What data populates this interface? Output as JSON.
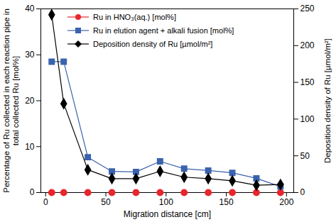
{
  "chart_data": {
    "type": "line",
    "x_label": "Migration distance [cm]",
    "y_label": "Percentage of Ru collected in each reaction pipe in total collected Ru [mol%]",
    "y2_label": "Deposition density of Ru [µmol/m²]",
    "x": [
      5,
      15,
      35,
      55,
      75,
      95,
      115,
      135,
      155,
      175,
      195
    ],
    "xlim": [
      -4,
      206
    ],
    "xticks": [
      0,
      50,
      100,
      150,
      200
    ],
    "ylim": [
      0,
      40
    ],
    "yticks": [
      0,
      10,
      20,
      30,
      40
    ],
    "y2lim": [
      0,
      250
    ],
    "y2ticks": [
      0,
      50,
      100,
      150,
      200,
      250
    ],
    "grid": false,
    "legend": "top",
    "series": [
      {
        "name": "Ru in HNO₃(aq.) [mol%]",
        "color": "#e8262c",
        "marker": "circle",
        "axis": "y",
        "values": [
          0,
          0,
          0,
          0,
          0,
          0,
          0,
          0,
          0,
          0,
          0
        ]
      },
      {
        "name": "Ru in elution agent + alkali fusion [mol%]",
        "color": "#3a62ad",
        "marker": "square",
        "axis": "y",
        "values": [
          28.5,
          28.5,
          7.7,
          4.6,
          4.5,
          6.8,
          5.2,
          4.8,
          4.3,
          3.1,
          1.3
        ]
      },
      {
        "name": "Deposition density of Ru [µmol/m²]",
        "color": "#000000",
        "marker": "diamond",
        "axis": "y2",
        "values": [
          242,
          121,
          31,
          19,
          19,
          29,
          21,
          19,
          16,
          10,
          11
        ]
      }
    ]
  }
}
